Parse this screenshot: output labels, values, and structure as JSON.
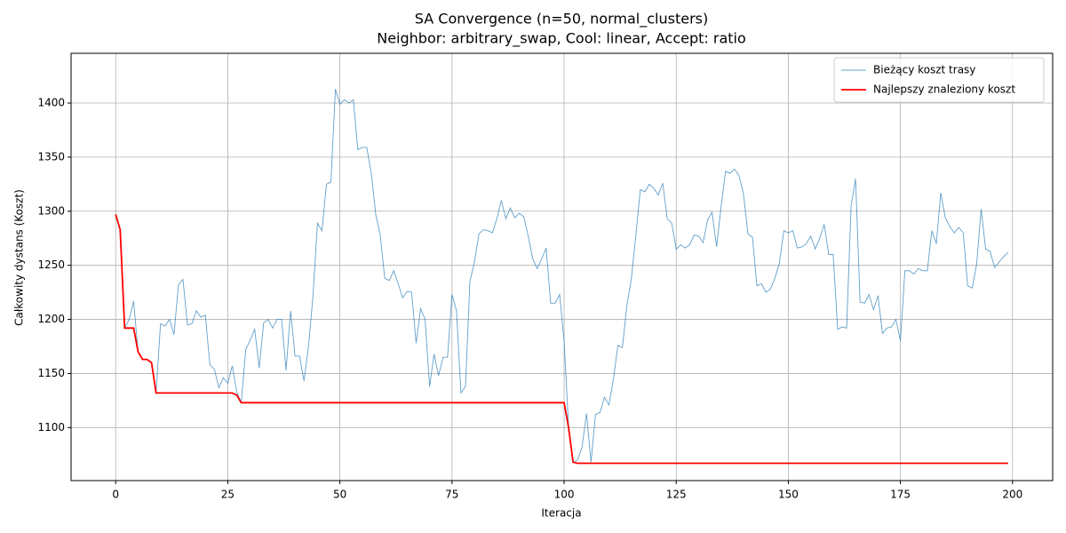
{
  "chart_data": {
    "type": "line",
    "title": "SA Convergence (n=50, normal_clusters)",
    "subtitle": "Neighbor: arbitrary_swap, Cool: linear, Accept: ratio",
    "xlabel": "Iteracja",
    "ylabel": "Całkowity dystans (Koszt)",
    "x": [
      0,
      1,
      2,
      3,
      4,
      5,
      6,
      7,
      8,
      9,
      10,
      11,
      12,
      13,
      14,
      15,
      16,
      17,
      18,
      19,
      20,
      21,
      22,
      23,
      24,
      25,
      26,
      27,
      28,
      29,
      30,
      31,
      32,
      33,
      34,
      35,
      36,
      37,
      38,
      39,
      40,
      41,
      42,
      43,
      44,
      45,
      46,
      47,
      48,
      49,
      50,
      51,
      52,
      53,
      54,
      55,
      56,
      57,
      58,
      59,
      60,
      61,
      62,
      63,
      64,
      65,
      66,
      67,
      68,
      69,
      70,
      71,
      72,
      73,
      74,
      75,
      76,
      77,
      78,
      79,
      80,
      81,
      82,
      83,
      84,
      85,
      86,
      87,
      88,
      89,
      90,
      91,
      92,
      93,
      94,
      95,
      96,
      97,
      98,
      99,
      100,
      101,
      102,
      103,
      104,
      105,
      106,
      107,
      108,
      109,
      110,
      111,
      112,
      113,
      114,
      115,
      116,
      117,
      118,
      119,
      120,
      121,
      122,
      123,
      124,
      125,
      126,
      127,
      128,
      129,
      130,
      131,
      132,
      133,
      134,
      135,
      136,
      137,
      138,
      139,
      140,
      141,
      142,
      143,
      144,
      145,
      146,
      147,
      148,
      149,
      150,
      151,
      152,
      153,
      154,
      155,
      156,
      157,
      158,
      159,
      160,
      161,
      162,
      163,
      164,
      165,
      166,
      167,
      168,
      169,
      170,
      171,
      172,
      173,
      174,
      175,
      176,
      177,
      178,
      179,
      180,
      181,
      182,
      183,
      184,
      185,
      186,
      187,
      188,
      189,
      190,
      191,
      192,
      193,
      194,
      195,
      196,
      197,
      198,
      199
    ],
    "series": [
      {
        "name": "Bieżący koszt trasy",
        "color": "#1f77b4",
        "values": [
          1297,
          1283,
          1192,
          1200,
          1217,
          1170,
          1163,
          1163,
          1160,
          1132,
          1196,
          1194,
          1200,
          1186,
          1232,
          1237,
          1195,
          1196,
          1208,
          1202,
          1204,
          1158,
          1154,
          1137,
          1146,
          1141,
          1157,
          1133,
          1123,
          1172,
          1181,
          1191,
          1155,
          1197,
          1200,
          1192,
          1200,
          1200,
          1153,
          1208,
          1166,
          1166,
          1143,
          1175,
          1222,
          1289,
          1282,
          1325,
          1327,
          1413,
          1399,
          1403,
          1400,
          1403,
          1357,
          1359,
          1359,
          1335,
          1297,
          1278,
          1238,
          1236,
          1245,
          1233,
          1220,
          1226,
          1225,
          1178,
          1210,
          1200,
          1138,
          1168,
          1148,
          1165,
          1165,
          1223,
          1208,
          1132,
          1138,
          1235,
          1253,
          1279,
          1283,
          1282,
          1280,
          1293,
          1310,
          1293,
          1303,
          1294,
          1298,
          1295,
          1277,
          1256,
          1247,
          1256,
          1266,
          1215,
          1215,
          1223,
          1180,
          1100,
          1068,
          1070,
          1082,
          1113,
          1068,
          1112,
          1114,
          1128,
          1121,
          1145,
          1176,
          1174,
          1213,
          1238,
          1278,
          1320,
          1318,
          1325,
          1321,
          1315,
          1326,
          1293,
          1289,
          1265,
          1269,
          1266,
          1269,
          1278,
          1277,
          1271,
          1292,
          1299,
          1267,
          1304,
          1337,
          1335,
          1339,
          1333,
          1316,
          1279,
          1276,
          1231,
          1233,
          1225,
          1228,
          1238,
          1252,
          1282,
          1280,
          1282,
          1266,
          1267,
          1270,
          1277,
          1265,
          1275,
          1288,
          1260,
          1260,
          1191,
          1193,
          1192,
          1305,
          1330,
          1216,
          1215,
          1223,
          1209,
          1222,
          1187,
          1192,
          1193,
          1200,
          1180,
          1245,
          1245,
          1242,
          1247,
          1245,
          1245,
          1282,
          1270,
          1317,
          1294,
          1286,
          1280,
          1285,
          1280,
          1231,
          1229,
          1251,
          1302,
          1265,
          1263,
          1248,
          1253,
          1258,
          1262
        ]
      },
      {
        "name": "Najlepszy znaleziony koszt",
        "color": "#ff0000",
        "values": [
          1297,
          1283,
          1192,
          1192,
          1192,
          1170,
          1163,
          1163,
          1160,
          1132,
          1132,
          1132,
          1132,
          1132,
          1132,
          1132,
          1132,
          1132,
          1132,
          1132,
          1132,
          1132,
          1132,
          1132,
          1132,
          1132,
          1132,
          1130,
          1123,
          1123,
          1123,
          1123,
          1123,
          1123,
          1123,
          1123,
          1123,
          1123,
          1123,
          1123,
          1123,
          1123,
          1123,
          1123,
          1123,
          1123,
          1123,
          1123,
          1123,
          1123,
          1123,
          1123,
          1123,
          1123,
          1123,
          1123,
          1123,
          1123,
          1123,
          1123,
          1123,
          1123,
          1123,
          1123,
          1123,
          1123,
          1123,
          1123,
          1123,
          1123,
          1123,
          1123,
          1123,
          1123,
          1123,
          1123,
          1123,
          1123,
          1123,
          1123,
          1123,
          1123,
          1123,
          1123,
          1123,
          1123,
          1123,
          1123,
          1123,
          1123,
          1123,
          1123,
          1123,
          1123,
          1123,
          1123,
          1123,
          1123,
          1123,
          1123,
          1123,
          1100,
          1068,
          1067,
          1067,
          1067,
          1067,
          1067,
          1067,
          1067,
          1067,
          1067,
          1067,
          1067,
          1067,
          1067,
          1067,
          1067,
          1067,
          1067,
          1067,
          1067,
          1067,
          1067,
          1067,
          1067,
          1067,
          1067,
          1067,
          1067,
          1067,
          1067,
          1067,
          1067,
          1067,
          1067,
          1067,
          1067,
          1067,
          1067,
          1067,
          1067,
          1067,
          1067,
          1067,
          1067,
          1067,
          1067,
          1067,
          1067,
          1067,
          1067,
          1067,
          1067,
          1067,
          1067,
          1067,
          1067,
          1067,
          1067,
          1067,
          1067,
          1067,
          1067,
          1067,
          1067,
          1067,
          1067,
          1067,
          1067,
          1067,
          1067,
          1067,
          1067,
          1067,
          1067,
          1067,
          1067,
          1067,
          1067,
          1067,
          1067,
          1067,
          1067,
          1067,
          1067,
          1067,
          1067,
          1067,
          1067,
          1067,
          1067,
          1067,
          1067,
          1067,
          1067,
          1067,
          1067,
          1067,
          1067
        ]
      }
    ],
    "xlim": [
      -9.95,
      208.95
    ],
    "ylim": [
      1051,
      1446
    ],
    "xticks": [
      0,
      25,
      50,
      75,
      100,
      125,
      150,
      175,
      200
    ],
    "yticks": [
      1100,
      1150,
      1200,
      1250,
      1300,
      1350,
      1400
    ],
    "grid": true,
    "legend": "upper right"
  }
}
